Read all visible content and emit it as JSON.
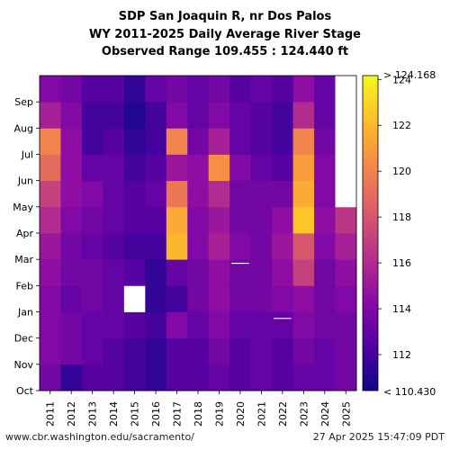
{
  "header": {
    "line1": "SDP San Joaquin R, nr Dos Palos",
    "line2": "WY 2011-2025 Daily Average River Stage",
    "line3": "Observed Range 109.455 : 124.440 ft"
  },
  "footer": {
    "source": "www.cbr.washington.edu/sacramento/",
    "timestamp": "27 Apr 2025 15:47:09 PDT"
  },
  "chart_data": {
    "type": "heatmap",
    "title": "SDP San Joaquin R, nr Dos Palos — WY 2011-2025 Daily Average River Stage",
    "observed_range": [
      109.455,
      124.44
    ],
    "units": "ft",
    "x": [
      "2011",
      "2012",
      "2013",
      "2014",
      "2015",
      "2016",
      "2017",
      "2018",
      "2019",
      "2020",
      "2021",
      "2022",
      "2023",
      "2024",
      "2025"
    ],
    "y": [
      "Oct",
      "Nov",
      "Dec",
      "Jan",
      "Feb",
      "Mar",
      "Apr",
      "May",
      "Jun",
      "Jul",
      "Aug",
      "Sep"
    ],
    "colorbar": {
      "min": 110.43,
      "max": 124.168,
      "min_label": "< 110.430",
      "max_label": "> 124.168",
      "ticks": [
        112,
        114,
        116,
        118,
        120,
        122,
        124
      ],
      "tick_labels": [
        "112",
        "114",
        "116",
        "118",
        "120",
        "122",
        "124"
      ],
      "colors": [
        "#0d0887",
        "#5302a3",
        "#8b0aa5",
        "#b83289",
        "#db5c68",
        "#f48849",
        "#febd2a",
        "#f0f921"
      ]
    },
    "values": [
      [
        113.5,
        114.0,
        114.0,
        114.0,
        114.5,
        115.0,
        116.0,
        117.0,
        119.0,
        120.0,
        115.5,
        114.0
      ],
      [
        111.5,
        113.5,
        113.5,
        113.0,
        113.5,
        113.5,
        114.0,
        114.5,
        114.5,
        114.5,
        114.0,
        113.5
      ],
      [
        112.5,
        113.0,
        113.0,
        113.5,
        113.5,
        113.0,
        113.5,
        114.0,
        113.0,
        112.0,
        112.0,
        112.5
      ],
      [
        112.5,
        112.5,
        113.0,
        113.0,
        113.0,
        112.5,
        113.0,
        113.0,
        113.0,
        112.5,
        112.0,
        112.5
      ],
      [
        112.0,
        112.0,
        112.5,
        null,
        112.5,
        112.0,
        112.5,
        112.5,
        112.0,
        111.5,
        111.0,
        111.5
      ],
      [
        111.5,
        111.5,
        112.0,
        111.5,
        111.5,
        112.0,
        112.5,
        113.0,
        112.5,
        112.0,
        112.0,
        113.0
      ],
      [
        112.5,
        112.5,
        114.0,
        112.0,
        113.0,
        122.0,
        121.5,
        119.5,
        115.0,
        120.0,
        114.0,
        113.5
      ],
      [
        112.5,
        112.5,
        113.0,
        113.5,
        113.5,
        114.0,
        114.0,
        114.5,
        114.5,
        113.5,
        113.0,
        113.0
      ],
      [
        113.0,
        113.5,
        114.0,
        114.5,
        114.5,
        115.5,
        115.0,
        116.0,
        120.5,
        115.5,
        114.0,
        113.5
      ],
      [
        112.5,
        112.5,
        113.0,
        113.5,
        113.5,
        114.0,
        113.5,
        113.5,
        114.0,
        113.0,
        113.0,
        112.5
      ],
      [
        113.0,
        113.0,
        113.0,
        113.5,
        113.5,
        113.5,
        113.5,
        113.5,
        113.0,
        112.5,
        112.5,
        113.0
      ],
      [
        112.5,
        112.5,
        113.0,
        114.0,
        114.5,
        115.0,
        114.5,
        113.5,
        112.5,
        112.0,
        112.0,
        112.5
      ],
      [
        113.0,
        113.5,
        114.0,
        114.5,
        117.0,
        118.0,
        122.5,
        121.5,
        121.0,
        120.0,
        116.0,
        114.5
      ],
      [
        113.0,
        113.0,
        113.5,
        113.5,
        113.5,
        114.0,
        114.5,
        114.0,
        114.0,
        113.5,
        113.0,
        113.0
      ],
      [
        113.5,
        113.5,
        113.5,
        114.0,
        114.5,
        115.5,
        116.5,
        null,
        null,
        null,
        null,
        null
      ]
    ],
    "colorbar_position": "right",
    "grid": false
  }
}
